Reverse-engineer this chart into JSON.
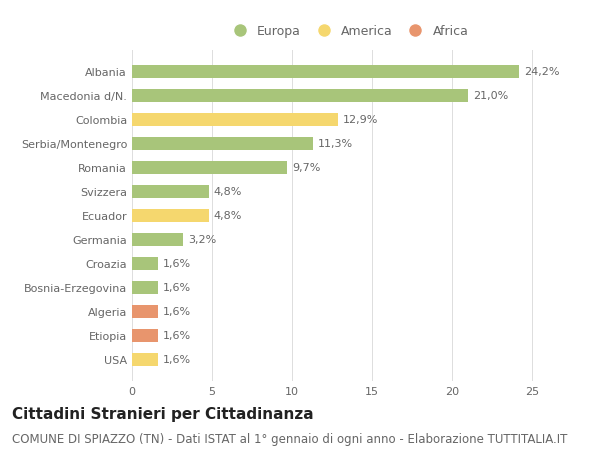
{
  "categories": [
    "USA",
    "Etiopia",
    "Algeria",
    "Bosnia-Erzegovina",
    "Croazia",
    "Germania",
    "Ecuador",
    "Svizzera",
    "Romania",
    "Serbia/Montenegro",
    "Colombia",
    "Macedonia d/N.",
    "Albania"
  ],
  "values": [
    1.6,
    1.6,
    1.6,
    1.6,
    1.6,
    3.2,
    4.8,
    4.8,
    9.7,
    11.3,
    12.9,
    21.0,
    24.2
  ],
  "labels": [
    "1,6%",
    "1,6%",
    "1,6%",
    "1,6%",
    "1,6%",
    "3,2%",
    "4,8%",
    "4,8%",
    "9,7%",
    "11,3%",
    "12,9%",
    "21,0%",
    "24,2%"
  ],
  "colors": [
    "#f5d76e",
    "#e8956d",
    "#e8956d",
    "#a8c57a",
    "#a8c57a",
    "#a8c57a",
    "#f5d76e",
    "#a8c57a",
    "#a8c57a",
    "#a8c57a",
    "#f5d76e",
    "#a8c57a",
    "#a8c57a"
  ],
  "legend_labels": [
    "Europa",
    "America",
    "Africa"
  ],
  "legend_colors": [
    "#a8c57a",
    "#f5d76e",
    "#e8956d"
  ],
  "title": "Cittadini Stranieri per Cittadinanza",
  "subtitle": "COMUNE DI SPIAZZO (TN) - Dati ISTAT al 1° gennaio di ogni anno - Elaborazione TUTTITALIA.IT",
  "xlim": [
    0,
    27
  ],
  "background_color": "#ffffff",
  "title_fontsize": 11,
  "subtitle_fontsize": 8.5,
  "label_fontsize": 8,
  "tick_fontsize": 8,
  "legend_fontsize": 9,
  "bar_height": 0.55
}
